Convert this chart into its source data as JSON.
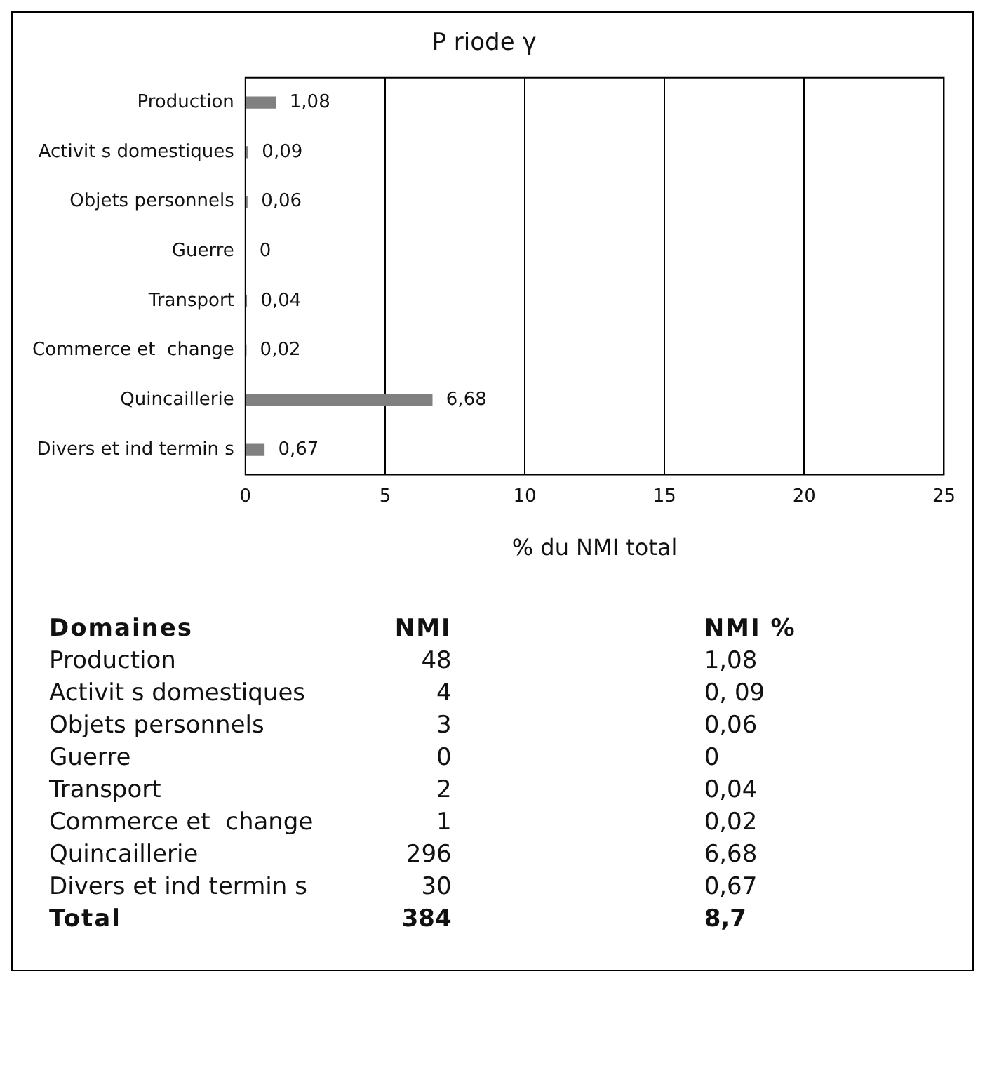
{
  "chart_data": [
    {
      "type": "bar",
      "orientation": "horizontal",
      "title": "P riode γ",
      "xlabel": "% du NMI total",
      "categories": [
        "Production",
        "Activit s domestiques",
        "Objets personnels",
        "Guerre",
        "Transport",
        "Commerce et  change",
        "Quincaillerie",
        "Divers et ind termin s"
      ],
      "values": [
        1.08,
        0.09,
        0.06,
        0,
        0.04,
        0.02,
        6.68,
        0.67
      ],
      "value_labels": [
        "1,08",
        "0,09",
        "0,06",
        "0",
        "0,04",
        "0,02",
        "6,68",
        "0,67"
      ],
      "color": "#808080",
      "xlim": [
        0,
        25
      ],
      "xticks": [
        0,
        5,
        10,
        15,
        20,
        25
      ],
      "grid": "x",
      "legend": false
    },
    {
      "type": "other",
      "annotations": [
        "Domaines",
        "Total"
      ],
      "categories": [
        "Production",
        "Activit s domestiques",
        "Objets personnels",
        "Guerre",
        "Transport",
        "Commerce et  change",
        "Quincaillerie",
        "Divers et ind termin s"
      ],
      "series": [
        {
          "name": "NMI",
          "values": [
            48,
            4,
            3,
            0,
            2,
            1,
            296,
            30
          ],
          "value_labels": [
            "48",
            "4",
            "3",
            "0",
            "2",
            "1",
            "296",
            "30"
          ]
        },
        {
          "name": "NMI %",
          "values": [
            1.08,
            0.09,
            0.06,
            0,
            0.04,
            0.02,
            6.68,
            0.67
          ],
          "value_labels": [
            "1,08",
            "0, 09",
            "0,06",
            "0",
            "0,04",
            "0,02",
            "6,68",
            "0,67"
          ]
        }
      ],
      "totals": [
        "384",
        "8,7"
      ]
    }
  ]
}
